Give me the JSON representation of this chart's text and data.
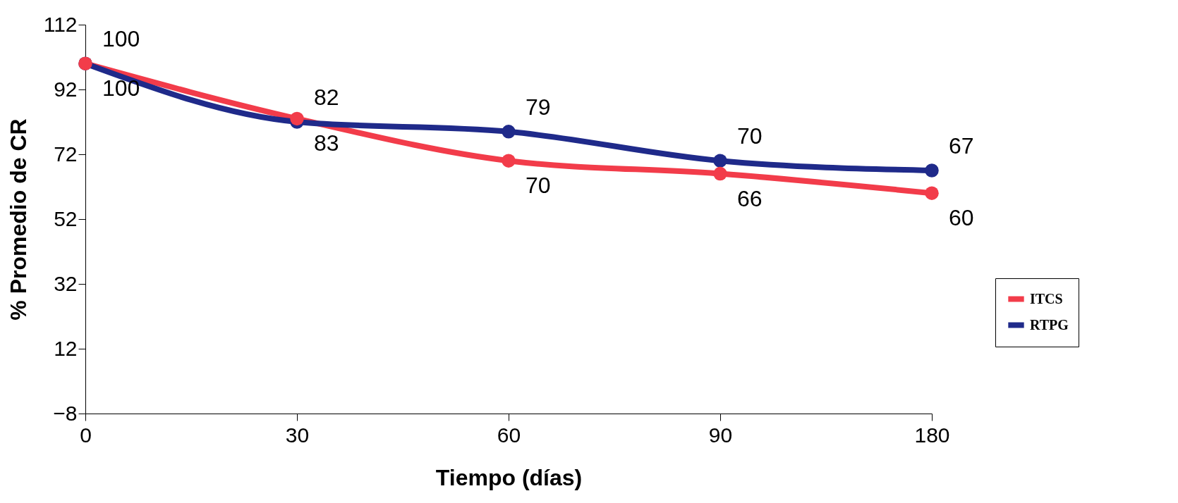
{
  "chart_data": {
    "type": "line",
    "xlabel": "Tiempo (días)",
    "ylabel": "% Promedio de CR",
    "categories": [
      "0",
      "30",
      "60",
      "90",
      "180"
    ],
    "series": [
      {
        "name": "ITCS",
        "color": "#f23c4a",
        "values": [
          100,
          83,
          70,
          66,
          60
        ]
      },
      {
        "name": "RTPG",
        "color": "#1f2a8a",
        "values": [
          100,
          82,
          79,
          70,
          67
        ]
      }
    ],
    "ylim": [
      -8,
      112
    ],
    "yticks": [
      -8,
      12,
      32,
      52,
      72,
      92,
      112
    ],
    "grid": false,
    "legend": "right",
    "marker": "circle",
    "line_style": "solid",
    "data_labels": true
  }
}
